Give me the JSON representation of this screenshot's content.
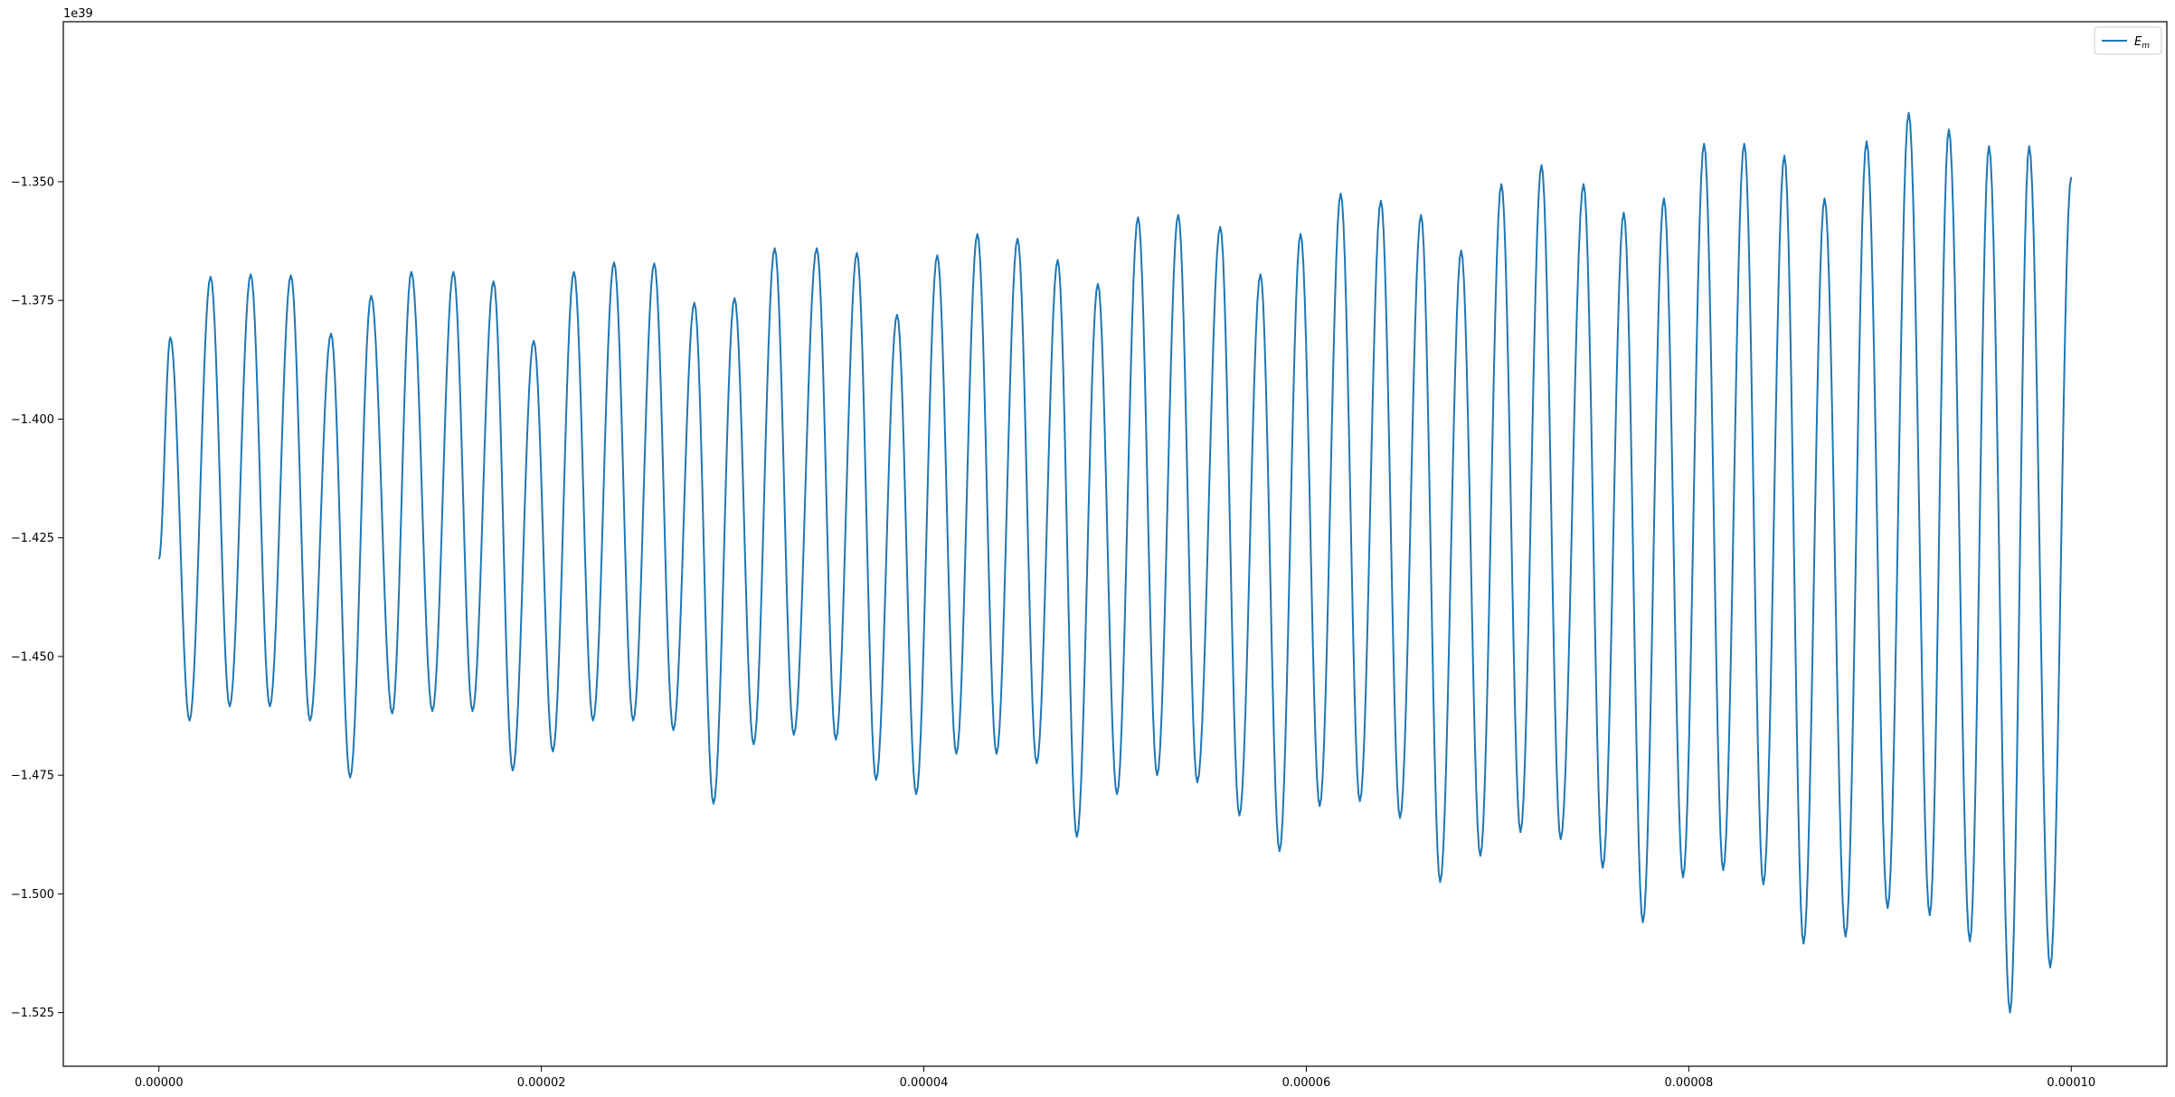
{
  "chart_data": {
    "type": "line",
    "title": "",
    "xlabel": "",
    "ylabel": "",
    "y_offset_text": "1e39",
    "xlim": [
      -5e-06,
      0.000105
    ],
    "ylim": [
      -1.5363,
      -1.3163
    ],
    "x_ticks": [
      0.0,
      2e-05,
      4e-05,
      6e-05,
      8e-05,
      0.0001
    ],
    "x_tick_labels": [
      "0.00000",
      "0.00002",
      "0.00004",
      "0.00006",
      "0.00008",
      "0.00010"
    ],
    "y_ticks": [
      -1.35,
      -1.375,
      -1.4,
      -1.425,
      -1.45,
      -1.475,
      -1.5,
      -1.525
    ],
    "y_tick_labels": [
      "−1.350",
      "−1.375",
      "−1.400",
      "−1.425",
      "−1.450",
      "−1.475",
      "−1.500",
      "−1.525"
    ],
    "grid": false,
    "legend_position": "top-right",
    "series": [
      {
        "name": "E_m",
        "color": "#1f77b4",
        "start": [
          0.0,
          -1.4295
        ],
        "end": [
          0.0001,
          -1.349
        ],
        "peaks": [
          [
            6e-07,
            -1.3828
          ],
          [
            2.7e-06,
            -1.37
          ],
          [
            4.8e-06,
            -1.3695
          ],
          [
            6.9e-06,
            -1.3697
          ],
          [
            9e-06,
            -1.382
          ],
          [
            1.11e-05,
            -1.374
          ],
          [
            1.32e-05,
            -1.369
          ],
          [
            1.54e-05,
            -1.369
          ],
          [
            1.75e-05,
            -1.371
          ],
          [
            1.96e-05,
            -1.3835
          ],
          [
            2.17e-05,
            -1.369
          ],
          [
            2.38e-05,
            -1.367
          ],
          [
            2.59e-05,
            -1.3672
          ],
          [
            2.8e-05,
            -1.3755
          ],
          [
            3.01e-05,
            -1.3745
          ],
          [
            3.22e-05,
            -1.364
          ],
          [
            3.44e-05,
            -1.364
          ],
          [
            3.65e-05,
            -1.365
          ],
          [
            3.86e-05,
            -1.378
          ],
          [
            4.07e-05,
            -1.3655
          ],
          [
            4.28e-05,
            -1.361
          ],
          [
            4.49e-05,
            -1.362
          ],
          [
            4.7e-05,
            -1.3665
          ],
          [
            4.91e-05,
            -1.3715
          ],
          [
            5.12e-05,
            -1.3575
          ],
          [
            5.33e-05,
            -1.357
          ],
          [
            5.55e-05,
            -1.3595
          ],
          [
            5.76e-05,
            -1.3695
          ],
          [
            5.97e-05,
            -1.361
          ],
          [
            6.18e-05,
            -1.3525
          ],
          [
            6.39e-05,
            -1.354
          ],
          [
            6.6e-05,
            -1.357
          ],
          [
            6.81e-05,
            -1.3645
          ],
          [
            7.02e-05,
            -1.3505
          ],
          [
            7.23e-05,
            -1.3465
          ],
          [
            7.45e-05,
            -1.3505
          ],
          [
            7.66e-05,
            -1.3565
          ],
          [
            7.87e-05,
            -1.3535
          ],
          [
            8.08e-05,
            -1.342
          ],
          [
            8.29e-05,
            -1.342
          ],
          [
            8.5e-05,
            -1.3445
          ],
          [
            8.71e-05,
            -1.3535
          ],
          [
            8.93e-05,
            -1.3415
          ],
          [
            9.15e-05,
            -1.3355
          ],
          [
            9.36e-05,
            -1.339
          ],
          [
            9.57e-05,
            -1.3425
          ],
          [
            9.78e-05,
            -1.3425
          ]
        ],
        "troughs": [
          [
            1.6e-06,
            -1.4635
          ],
          [
            3.7e-06,
            -1.4605
          ],
          [
            5.8e-06,
            -1.4605
          ],
          [
            7.9e-06,
            -1.4635
          ],
          [
            1e-05,
            -1.4755
          ],
          [
            1.22e-05,
            -1.462
          ],
          [
            1.43e-05,
            -1.4615
          ],
          [
            1.64e-05,
            -1.4615
          ],
          [
            1.85e-05,
            -1.474
          ],
          [
            2.06e-05,
            -1.47
          ],
          [
            2.27e-05,
            -1.4635
          ],
          [
            2.48e-05,
            -1.4635
          ],
          [
            2.69e-05,
            -1.4655
          ],
          [
            2.9e-05,
            -1.481
          ],
          [
            3.11e-05,
            -1.4685
          ],
          [
            3.32e-05,
            -1.4665
          ],
          [
            3.54e-05,
            -1.4675
          ],
          [
            3.75e-05,
            -1.476
          ],
          [
            3.96e-05,
            -1.479
          ],
          [
            4.17e-05,
            -1.4705
          ],
          [
            4.38e-05,
            -1.4705
          ],
          [
            4.59e-05,
            -1.4725
          ],
          [
            4.8e-05,
            -1.488
          ],
          [
            5.01e-05,
            -1.479
          ],
          [
            5.22e-05,
            -1.475
          ],
          [
            5.43e-05,
            -1.4765
          ],
          [
            5.65e-05,
            -1.4835
          ],
          [
            5.86e-05,
            -1.491
          ],
          [
            6.07e-05,
            -1.4815
          ],
          [
            6.28e-05,
            -1.4805
          ],
          [
            6.49e-05,
            -1.484
          ],
          [
            6.7e-05,
            -1.4975
          ],
          [
            6.91e-05,
            -1.492
          ],
          [
            7.12e-05,
            -1.487
          ],
          [
            7.33e-05,
            -1.4885
          ],
          [
            7.55e-05,
            -1.4945
          ],
          [
            7.76e-05,
            -1.506
          ],
          [
            7.97e-05,
            -1.4965
          ],
          [
            8.18e-05,
            -1.495
          ],
          [
            8.39e-05,
            -1.498
          ],
          [
            8.6e-05,
            -1.5105
          ],
          [
            8.82e-05,
            -1.509
          ],
          [
            9.04e-05,
            -1.503
          ],
          [
            9.26e-05,
            -1.5045
          ],
          [
            9.47e-05,
            -1.51
          ],
          [
            9.68e-05,
            -1.525
          ],
          [
            9.89e-05,
            -1.5155
          ]
        ]
      }
    ]
  }
}
